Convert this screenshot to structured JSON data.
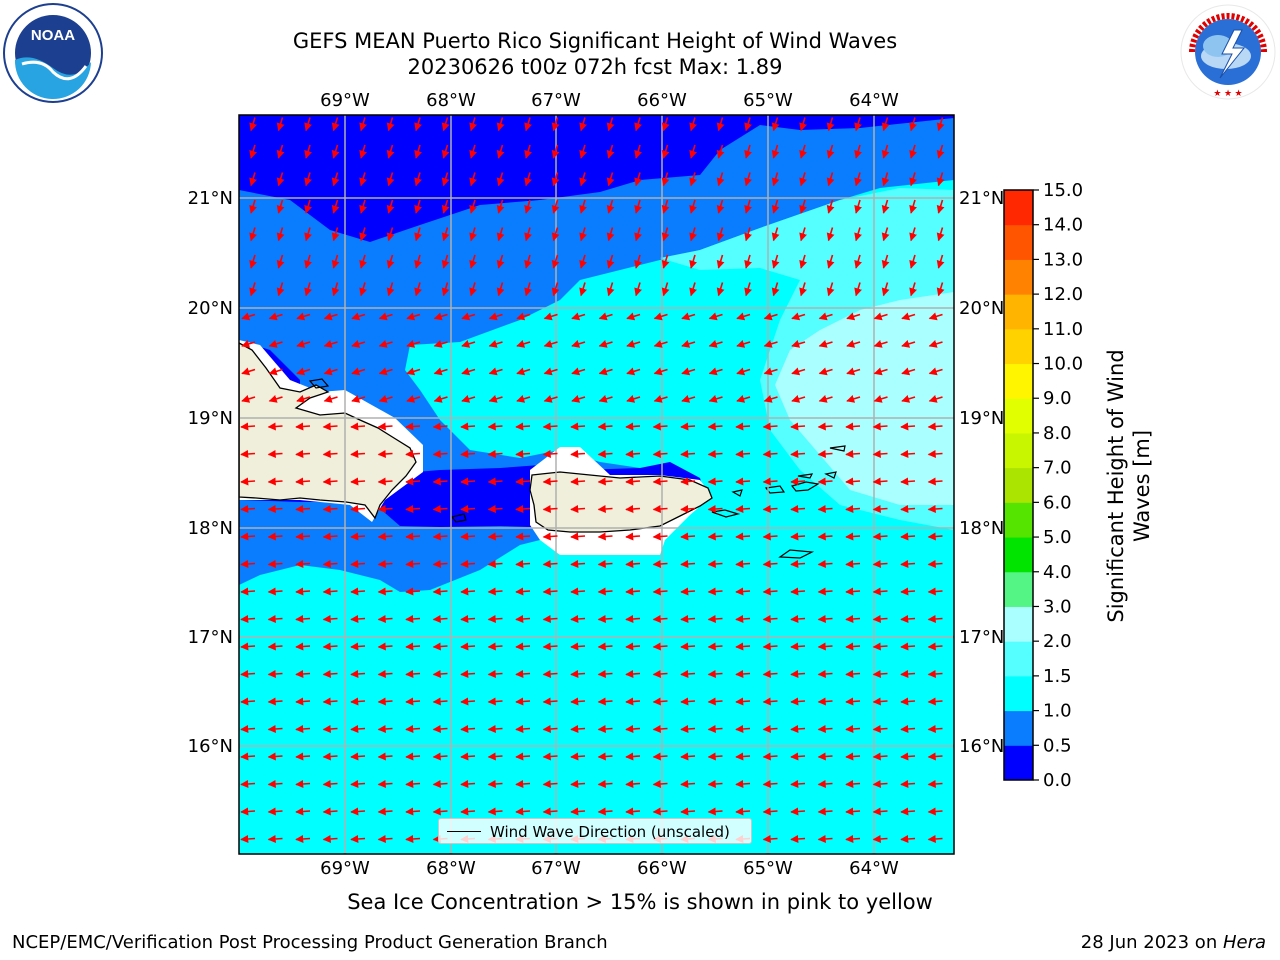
{
  "title": {
    "line1": "GEFS MEAN Puerto Rico Significant Height of Wind Waves",
    "line2": "20230626 t00z 072h fcst   Max: 1.89"
  },
  "map": {
    "lon_labels": [
      "69°W",
      "68°W",
      "67°W",
      "66°W",
      "65°W",
      "64°W"
    ],
    "lat_labels": [
      "21°N",
      "20°N",
      "19°N",
      "18°N",
      "17°N",
      "16°N"
    ],
    "lon_range": [
      -70.0,
      -63.25
    ],
    "lat_range": [
      15.0,
      21.75
    ],
    "arrow_color": "#ff0000",
    "land_color": "#efefdb"
  },
  "legend": {
    "label": "Wind Wave Direction (unscaled)"
  },
  "colorbar": {
    "title_line1": "Significant Height of Wind",
    "title_line2": "Waves [m]",
    "ticks": [
      "0.0",
      "0.5",
      "1.0",
      "1.5",
      "2.0",
      "3.0",
      "4.0",
      "5.0",
      "6.0",
      "7.0",
      "8.0",
      "9.0",
      "10.0",
      "11.0",
      "12.0",
      "13.0",
      "14.0",
      "15.0"
    ],
    "colors": [
      "#0000ff",
      "#0a7dff",
      "#00ffff",
      "#55ffff",
      "#aaffff",
      "#55f585",
      "#00e400",
      "#55e400",
      "#aae400",
      "#c8f500",
      "#e2ff00",
      "#fff500",
      "#ffd200",
      "#ffb400",
      "#ff8200",
      "#ff5500",
      "#ff2800"
    ]
  },
  "note": "Sea Ice Concentration > 15% is shown in pink to yellow",
  "footer": {
    "credit": "NCEP/EMC/Verification Post Processing Product Generation Branch",
    "date": "28 Jun 2023 on ",
    "host": "Hera"
  },
  "logos": {
    "left": "NOAA",
    "right": "NATIONAL WEATHER SERVICE"
  }
}
